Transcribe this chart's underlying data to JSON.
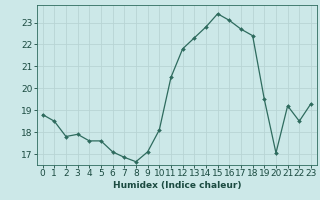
{
  "x": [
    0,
    1,
    2,
    3,
    4,
    5,
    6,
    7,
    8,
    9,
    10,
    11,
    12,
    13,
    14,
    15,
    16,
    17,
    18,
    19,
    20,
    21,
    22,
    23
  ],
  "y": [
    18.8,
    18.5,
    17.8,
    17.9,
    17.6,
    17.6,
    17.1,
    16.85,
    16.65,
    17.1,
    18.1,
    20.5,
    21.8,
    22.3,
    22.8,
    23.4,
    23.1,
    22.7,
    22.4,
    19.5,
    17.05,
    19.2,
    18.5,
    19.3
  ],
  "line_color": "#2e6b5e",
  "marker": "D",
  "marker_size": 2.0,
  "bg_color": "#cce8e8",
  "grid_color": "#b8d4d4",
  "axis_color": "#2e6b5e",
  "tick_color": "#1a4a40",
  "xlabel": "Humidex (Indice chaleur)",
  "ylim": [
    16.5,
    23.8
  ],
  "xlim": [
    -0.5,
    23.5
  ],
  "yticks": [
    17,
    18,
    19,
    20,
    21,
    22,
    23
  ],
  "xticks": [
    0,
    1,
    2,
    3,
    4,
    5,
    6,
    7,
    8,
    9,
    10,
    11,
    12,
    13,
    14,
    15,
    16,
    17,
    18,
    19,
    20,
    21,
    22,
    23
  ],
  "fontsize_label": 6.5,
  "fontsize_tick": 6.5
}
